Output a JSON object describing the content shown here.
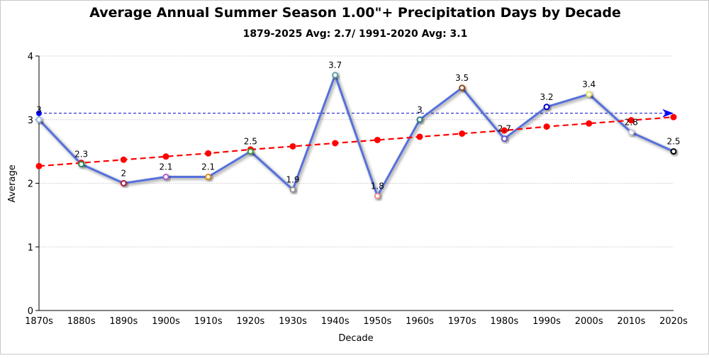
{
  "chart_data": {
    "type": "line",
    "title": "Average Annual Summer Season 1.00\"+ Precipitation Days by Decade",
    "subtitle": "1879-2025 Avg: 2.7/ 1991-2020 Avg: 3.1",
    "xlabel": "Decade",
    "ylabel": "Average",
    "ylim": [
      0,
      4
    ],
    "yticks": [
      "0",
      "1",
      "2",
      "3",
      "4"
    ],
    "grid": true,
    "categories": [
      "1870s",
      "1880s",
      "1890s",
      "1900s",
      "1910s",
      "1920s",
      "1930s",
      "1940s",
      "1950s",
      "1960s",
      "1970s",
      "1980s",
      "1990s",
      "2000s",
      "2010s",
      "2020s"
    ],
    "series": [
      {
        "values": [
          3,
          2.3,
          2,
          2.1,
          2.1,
          2.5,
          1.9,
          3.7,
          1.8,
          3,
          3.5,
          2.7,
          3.2,
          3.4,
          2.8,
          2.5
        ],
        "labels": [
          "3",
          "2.3",
          "2",
          "2.1",
          "2.1",
          "2.5",
          "1.9",
          "3.7",
          "1.8",
          "3",
          "3.5",
          "2.7",
          "3.2",
          "3.4",
          "2.8",
          "2.5"
        ],
        "color": "#5470dc",
        "marker_colors": [
          "#9fb8e0",
          "#2e8b57",
          "#b0163c",
          "#b05cc8",
          "#e08a10",
          "#3c9a3c",
          "#909090",
          "#5f9ea0",
          "#e89090",
          "#2f7f7f",
          "#8b4513",
          "#6a5acd",
          "#0000cd",
          "#e6e06a",
          "#c8c8e0",
          "#000000"
        ]
      },
      {
        "type": "trend",
        "values": [
          2.27,
          2.32,
          2.37,
          2.42,
          2.47,
          2.53,
          2.58,
          2.63,
          2.68,
          2.73,
          2.78,
          2.83,
          2.89,
          2.94,
          2.99,
          3.04
        ],
        "color": "#ff0000",
        "style": "dashed"
      }
    ],
    "reference_line": {
      "value": 3.1,
      "color": "#0000cc",
      "style": "dashed"
    }
  }
}
